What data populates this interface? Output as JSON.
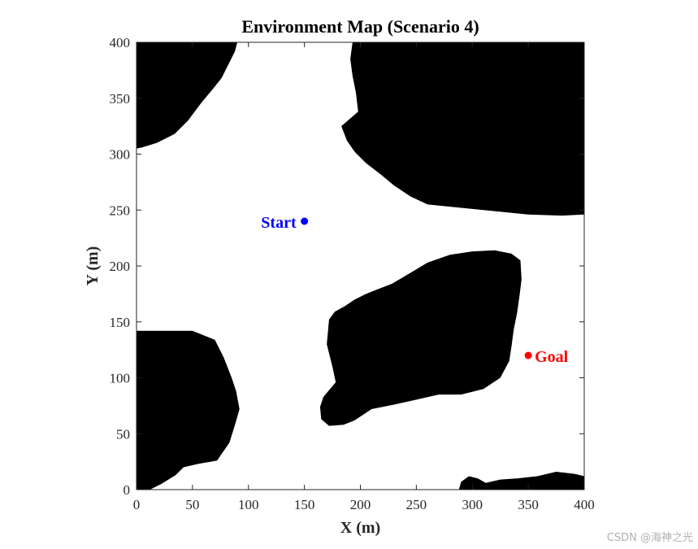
{
  "chart_data": {
    "type": "scatter",
    "title": "Environment Map (Scenario 4)",
    "xlabel": "X (m)",
    "ylabel": "Y (m)",
    "xlim": [
      0,
      400
    ],
    "ylim": [
      0,
      400
    ],
    "xticks": [
      0,
      50,
      100,
      150,
      200,
      250,
      300,
      350,
      400
    ],
    "yticks": [
      0,
      50,
      100,
      150,
      200,
      250,
      300,
      350,
      400
    ],
    "grid": false,
    "background_color": "#ffffff",
    "obstacle_color": "#000000",
    "obstacles": [
      {
        "points": [
          [
            0,
            400
          ],
          [
            90,
            400
          ],
          [
            88,
            392
          ],
          [
            82,
            380
          ],
          [
            76,
            368
          ],
          [
            68,
            358
          ],
          [
            58,
            346
          ],
          [
            46,
            330
          ],
          [
            34,
            318
          ],
          [
            18,
            310
          ],
          [
            5,
            306
          ],
          [
            0,
            305
          ]
        ]
      },
      {
        "points": [
          [
            193,
            400
          ],
          [
            400,
            400
          ],
          [
            400,
            246
          ],
          [
            380,
            245
          ],
          [
            350,
            246
          ],
          [
            330,
            248
          ],
          [
            300,
            251
          ],
          [
            280,
            253
          ],
          [
            260,
            255
          ],
          [
            245,
            262
          ],
          [
            230,
            272
          ],
          [
            218,
            282
          ],
          [
            205,
            292
          ],
          [
            195,
            302
          ],
          [
            188,
            312
          ],
          [
            183,
            325
          ],
          [
            198,
            338
          ],
          [
            196,
            355
          ],
          [
            193,
            370
          ],
          [
            191,
            385
          ]
        ]
      },
      {
        "points": [
          [
            172,
            152
          ],
          [
            177,
            159
          ],
          [
            186,
            164
          ],
          [
            195,
            170
          ],
          [
            205,
            175
          ],
          [
            215,
            179
          ],
          [
            228,
            184
          ],
          [
            245,
            194
          ],
          [
            260,
            203
          ],
          [
            280,
            210
          ],
          [
            300,
            213
          ],
          [
            320,
            214
          ],
          [
            335,
            211
          ],
          [
            343,
            205
          ],
          [
            344,
            188
          ],
          [
            342,
            172
          ],
          [
            340,
            158
          ],
          [
            337,
            143
          ],
          [
            335,
            128
          ],
          [
            333,
            115
          ],
          [
            325,
            100
          ],
          [
            310,
            90
          ],
          [
            290,
            85
          ],
          [
            270,
            85
          ],
          [
            248,
            80
          ],
          [
            230,
            76
          ],
          [
            210,
            72
          ],
          [
            195,
            62
          ],
          [
            185,
            58
          ],
          [
            172,
            57
          ],
          [
            165,
            63
          ],
          [
            164,
            74
          ],
          [
            167,
            83
          ],
          [
            178,
            96
          ],
          [
            175,
            110
          ],
          [
            170,
            130
          ]
        ]
      },
      {
        "points": [
          [
            0,
            142
          ],
          [
            50,
            142
          ],
          [
            70,
            134
          ],
          [
            78,
            118
          ],
          [
            85,
            100
          ],
          [
            89,
            88
          ],
          [
            92,
            72
          ],
          [
            88,
            58
          ],
          [
            83,
            42
          ],
          [
            72,
            26
          ],
          [
            55,
            23
          ],
          [
            42,
            20
          ],
          [
            35,
            13
          ],
          [
            22,
            5
          ],
          [
            12,
            0
          ],
          [
            0,
            0
          ]
        ]
      },
      {
        "points": [
          [
            288,
            0
          ],
          [
            290,
            7
          ],
          [
            297,
            12
          ],
          [
            305,
            10
          ],
          [
            312,
            6
          ],
          [
            325,
            9
          ],
          [
            340,
            10
          ],
          [
            358,
            12
          ],
          [
            375,
            16
          ],
          [
            392,
            14
          ],
          [
            400,
            12
          ],
          [
            400,
            0
          ]
        ]
      }
    ],
    "points": [
      {
        "name": "Start",
        "x": 150,
        "y": 240,
        "color": "#0000ff",
        "label_side": "left"
      },
      {
        "name": "Goal",
        "x": 350,
        "y": 120,
        "color": "#ff0000",
        "label_side": "right"
      }
    ]
  },
  "watermark": "CSDN @海神之光"
}
